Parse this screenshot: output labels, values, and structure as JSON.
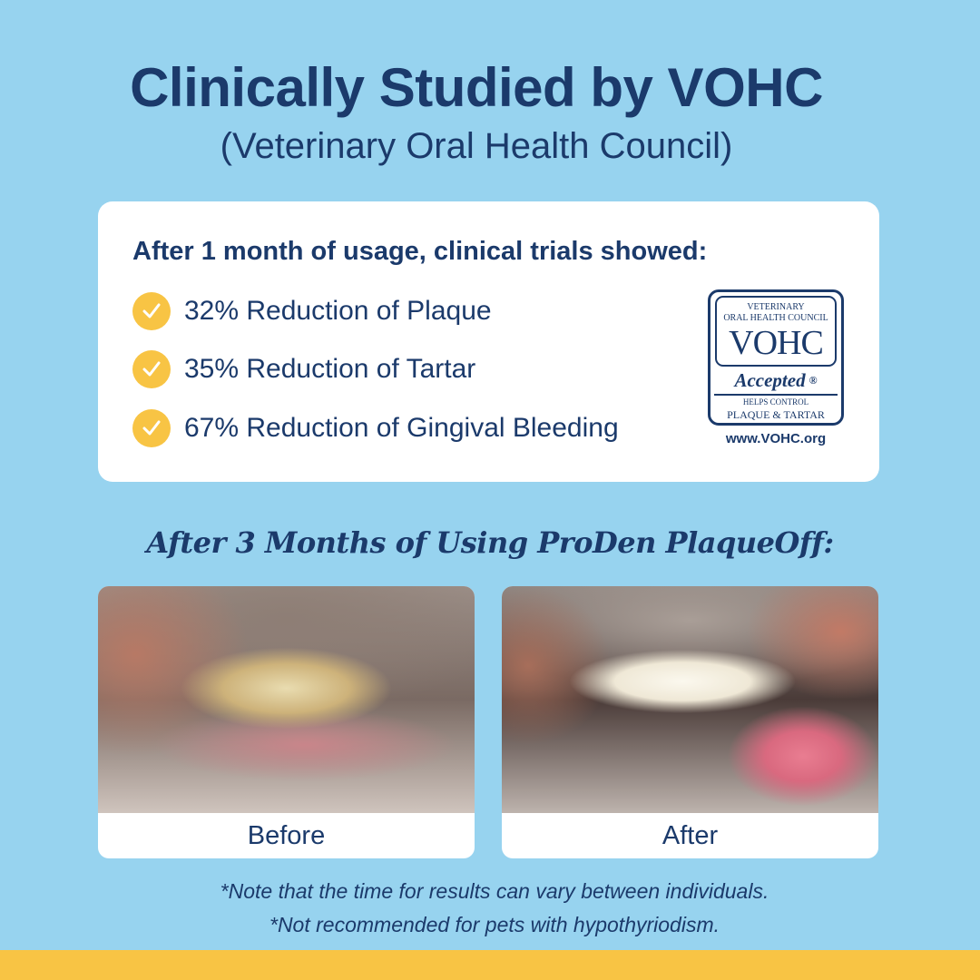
{
  "header": {
    "title": "Clinically Studied by VOHC",
    "subtitle": "(Veterinary Oral Health Council)"
  },
  "results_card": {
    "heading": "After 1 month of usage, clinical trials showed:",
    "stats": [
      {
        "icon": "check-circle-icon",
        "label": "32% Reduction of Plaque"
      },
      {
        "icon": "check-circle-icon",
        "label": "35% Reduction of Tartar"
      },
      {
        "icon": "check-circle-icon",
        "label": "67% Reduction of Gingival Bleeding"
      }
    ],
    "seal": {
      "line1": "VETERINARY",
      "line2": "ORAL HEALTH COUNCIL",
      "acronym": "VOHC",
      "accepted": "Accepted",
      "registered": "®",
      "line3": "HELPS CONTROL",
      "line4": "PLAQUE & TARTAR",
      "url": "www.VOHC.org"
    }
  },
  "comparison": {
    "heading": "After 3 Months of Using ProDen PlaqueOff:",
    "before_label": "Before",
    "after_label": "After"
  },
  "notes": [
    "*Note that the time for results can vary between individuals.",
    "*Not recommended for pets with hypothyriodism."
  ],
  "colors": {
    "background": "#97d3ef",
    "navy": "#1b3a6b",
    "accent_yellow": "#f8c444"
  }
}
